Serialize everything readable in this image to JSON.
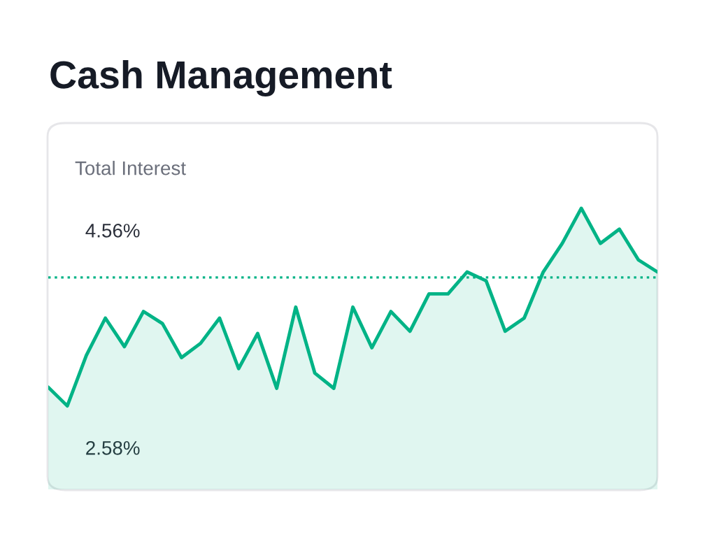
{
  "chart_data": {
    "type": "area",
    "title": "Cash Management",
    "subtitle": "Total Interest",
    "categories": [
      null,
      null,
      null,
      null,
      null,
      null,
      null,
      null,
      null,
      null,
      null,
      null,
      null,
      null,
      null,
      null,
      null,
      null,
      null,
      null,
      null,
      null,
      null,
      null,
      null,
      null,
      null,
      null,
      null,
      null,
      null,
      null,
      null
    ],
    "series": [
      {
        "color": "#00b386",
        "values": [
          3.13,
          2.96,
          3.42,
          3.76,
          3.5,
          3.82,
          3.71,
          3.4,
          3.53,
          3.76,
          3.3,
          3.62,
          3.12,
          3.86,
          3.26,
          3.12,
          3.86,
          3.49,
          3.82,
          3.64,
          3.98,
          3.98,
          4.18,
          4.1,
          3.64,
          3.76,
          4.18,
          4.44,
          4.76,
          4.44,
          4.57,
          4.29,
          4.18
        ]
      }
    ],
    "ylim": [
      2.2,
      5.53
    ],
    "yticks": [
      {
        "value": 2.58,
        "label": "2.58%"
      },
      {
        "value": 4.56,
        "label": "4.56%"
      }
    ],
    "ref_lines": [
      {
        "axis": "y",
        "value": 4.13,
        "color": "#00b386",
        "line_style": "dotted"
      }
    ],
    "grid": false,
    "legend": false,
    "tick_labels": "y",
    "line_style": "solid",
    "marker": "none"
  }
}
